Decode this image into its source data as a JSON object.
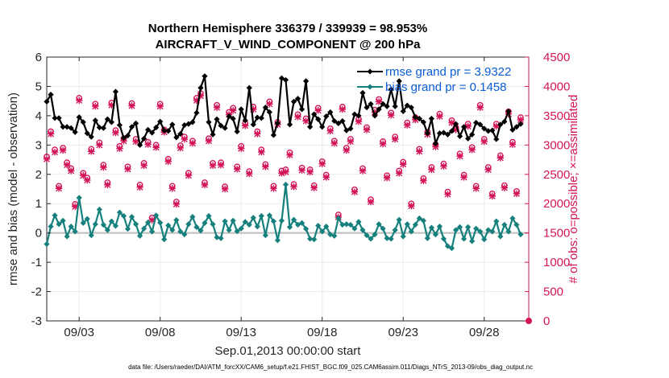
{
  "chart_data": {
    "type": "line",
    "title": "Northern Hemisphere 336379 / 339939 = 98.953%",
    "subtitle": "AIRCRAFT_V_WIND_COMPONENT @ 200 hPa",
    "xlabel": "Sep.01,2013 00:00:00 start",
    "ylabel": "rmse and bias (model - observation)",
    "ylabel_right": "# of obs: o=possible; ×=assimilated",
    "footnote": "data file: /Users/raeder/DAI/ATM_forcXX/CAM6_setup/f.e21.FHIST_BGC.f09_025.CAM6assim.011/Diags_NTrS_2013-09/obs_diag_output.nc",
    "xlim": [
      1.0,
      30.75
    ],
    "ylim": [
      -3,
      6
    ],
    "ylim_right": [
      0,
      4500
    ],
    "x_ticks": [
      3,
      8,
      13,
      18,
      23,
      28
    ],
    "x_tick_labels": [
      "09/03",
      "09/08",
      "09/13",
      "09/18",
      "09/23",
      "09/28"
    ],
    "y_ticks": [
      "-3",
      "-2",
      "-1",
      "0",
      "1",
      "2",
      "3",
      "4",
      "5",
      "6"
    ],
    "y_ticks_right": [
      "0",
      "500",
      "1000",
      "1500",
      "2000",
      "2500",
      "3000",
      "3500",
      "4000",
      "4500"
    ],
    "grid": true,
    "legend_position": "top-right",
    "x_start": 1.0,
    "x_step": 0.25,
    "series": [
      {
        "name": "rmse grand pr = 3.9322",
        "axis": "left",
        "color": "#000000",
        "marker": "diamond",
        "values": [
          4.48,
          4.72,
          3.92,
          3.92,
          3.62,
          3.62,
          3.58,
          3.44,
          3.95,
          3.78,
          3.4,
          3.28,
          3.84,
          3.6,
          3.58,
          3.88,
          3.78,
          4.82,
          3.68,
          3.24,
          3.32,
          3.62,
          3.74,
          3.0,
          3.22,
          3.52,
          3.42,
          3.6,
          3.8,
          3.5,
          3.48,
          3.7,
          3.26,
          3.38,
          3.68,
          3.72,
          3.78,
          4.1,
          4.95,
          5.35,
          3.78,
          3.36,
          3.88,
          3.66,
          3.58,
          3.98,
          3.9,
          3.46,
          4.22,
          3.84,
          4.95,
          3.7,
          3.94,
          3.92,
          4.28,
          4.12,
          3.34,
          3.75,
          5.28,
          5.22,
          3.7,
          4.48,
          4.58,
          4.22,
          5.18,
          3.62,
          4.05,
          3.88,
          3.62,
          3.98,
          4.12,
          3.82,
          3.74,
          3.82,
          3.5,
          3.56,
          4.05,
          4.0,
          4.78,
          4.28,
          4.4,
          4.0,
          4.22,
          4.4,
          4.32,
          4.9,
          4.32,
          5.18,
          4.15,
          4.35,
          4.28,
          3.95,
          3.9,
          3.78,
          3.4,
          3.9,
          3.05,
          3.4,
          3.42,
          3.36,
          3.48,
          3.72,
          3.3,
          3.62,
          3.22,
          3.36,
          3.76,
          3.7,
          3.56,
          3.48,
          3.5,
          3.2,
          3.7,
          3.8,
          4.15,
          3.52,
          3.62,
          3.72
        ]
      },
      {
        "name": "bias grand pr = 0.1458",
        "axis": "left",
        "color": "#16807d",
        "marker": "diamond",
        "values": [
          -0.38,
          0.22,
          0.6,
          0.3,
          0.42,
          -0.12,
          0.22,
          0.05,
          1.2,
          0.34,
          0.48,
          -0.08,
          0.3,
          0.8,
          0.28,
          0.1,
          0.4,
          0.24,
          0.7,
          0.58,
          0.14,
          0.55,
          0.3,
          -0.1,
          0.15,
          0.36,
          0.05,
          0.6,
          0.35,
          -0.22,
          0.26,
          0.1,
          0.44,
          0.05,
          -0.05,
          0.3,
          0.55,
          0.2,
          0.08,
          0.34,
          0.58,
          0.3,
          -0.15,
          -0.18,
          0.4,
          0.1,
          0.42,
          0.06,
          0.15,
          0.38,
          0.28,
          0.52,
          0.22,
          0.58,
          -0.08,
          0.6,
          0.4,
          -0.25,
          0.42,
          1.65,
          0.2,
          0.45,
          0.28,
          0.34,
          0.14,
          -0.2,
          -0.22,
          0.25,
          0.05,
          0.22,
          -0.05,
          -0.1,
          0.5,
          0.28,
          0.3,
          0.28,
          0.15,
          0.38,
          0.1,
          -0.08,
          -0.2,
          -0.05,
          0.3,
          0.15,
          -0.18,
          -0.2,
          0.1,
          0.45,
          -0.12,
          0.3,
          0.05,
          0.28,
          0.5,
          0.42,
          -0.18,
          0.18,
          -0.05,
          0.22,
          -0.2,
          -0.45,
          -0.52,
          0.1,
          0.2,
          -0.2,
          0.2,
          -0.28,
          0.15,
          0.05,
          -0.22,
          0.1,
          0.05,
          0.4,
          -0.12,
          0.28,
          0.05,
          0.5,
          0.28,
          -0.05
        ]
      },
      {
        "name": "obs possible",
        "axis": "right",
        "color": "#d4145a",
        "marker": "o",
        "values": [
          2800,
          3230,
          2920,
          2300,
          2950,
          2700,
          2600,
          1990,
          3800,
          2520,
          2440,
          2930,
          3700,
          3040,
          2660,
          2360,
          3720,
          3250,
          2980,
          3110,
          2630,
          3710,
          3100,
          2320,
          2690,
          3050,
          1760,
          3000,
          3700,
          3260,
          2760,
          2300,
          2030,
          2990,
          3140,
          2520,
          3070,
          3800,
          3880,
          2360,
          3110,
          2690,
          3680,
          2700,
          2290,
          3560,
          3630,
          2630,
          2980,
          3370,
          2550,
          3650,
          3230,
          2920,
          2670,
          3740,
          2300,
          3390,
          2560,
          2580,
          2870,
          2330,
          3520,
          2610,
          3450,
          2580,
          2310,
          3630,
          2720,
          2490,
          3280,
          3070,
          1810,
          3650,
          2950,
          3100,
          2240,
          3440,
          2600,
          3300,
          2070,
          3600,
          3780,
          3060,
          2480,
          3550,
          3140,
          2560,
          2710,
          3380,
          2000,
          3470,
          2930,
          2430,
          3220,
          2620,
          3010,
          3530,
          2680,
          2200,
          3420,
          3300,
          2850,
          2490,
          3360,
          2960,
          2300,
          3680,
          3100,
          2620,
          2170,
          3360,
          2820,
          2310,
          3570,
          3050,
          2210,
          3470
        ]
      },
      {
        "name": "obs assimilated",
        "axis": "right",
        "color": "#d4145a",
        "marker": "x",
        "values": [
          2760,
          3190,
          2880,
          2260,
          2910,
          2660,
          2560,
          1950,
          3760,
          2480,
          2400,
          2890,
          3660,
          3000,
          2620,
          2320,
          3680,
          3210,
          2940,
          3070,
          2590,
          3670,
          3060,
          2280,
          2650,
          3010,
          1720,
          2960,
          3660,
          3220,
          2720,
          2260,
          1990,
          2950,
          3100,
          2480,
          3030,
          3760,
          3840,
          2320,
          3070,
          2650,
          3640,
          2660,
          2250,
          3520,
          3590,
          2590,
          2940,
          3330,
          2510,
          3610,
          3190,
          2880,
          2630,
          3700,
          2260,
          3350,
          2520,
          2540,
          2830,
          2290,
          3480,
          2570,
          3410,
          2540,
          2270,
          3590,
          2680,
          2450,
          3240,
          3030,
          1770,
          3610,
          2910,
          3060,
          2200,
          3400,
          2560,
          3260,
          2030,
          3560,
          3740,
          3020,
          2440,
          3510,
          3100,
          2520,
          2670,
          3340,
          1960,
          3430,
          2890,
          2390,
          3180,
          2580,
          2970,
          3490,
          2640,
          2160,
          3380,
          3260,
          2810,
          2450,
          3320,
          2920,
          2260,
          3640,
          3060,
          2580,
          2130,
          3320,
          2780,
          2270,
          3530,
          3010,
          2170,
          3430
        ]
      }
    ]
  }
}
